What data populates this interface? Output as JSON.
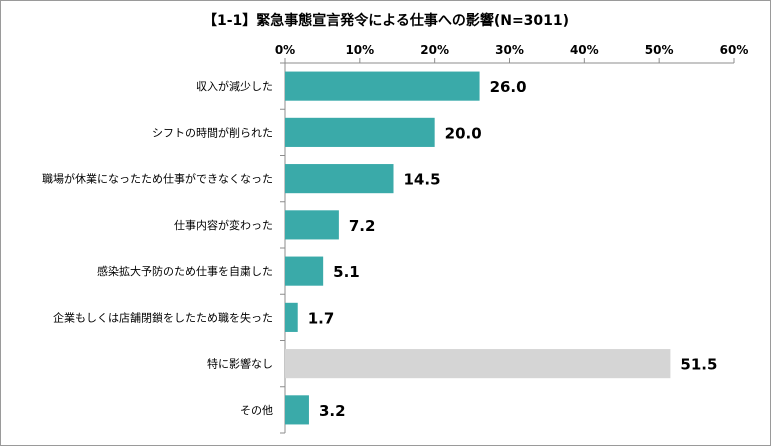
{
  "chart_data": {
    "type": "bar",
    "orientation": "horizontal",
    "title": "【1-1】緊急事態宣言発令による仕事への影響(N=3011)",
    "xlabel": "",
    "ylabel": "",
    "xlim": [
      0,
      60
    ],
    "x_ticks": [
      0,
      10,
      20,
      30,
      40,
      50,
      60
    ],
    "x_tick_labels": [
      "0%",
      "10%",
      "20%",
      "30%",
      "40%",
      "50%",
      "60%"
    ],
    "x_axis_position": "top",
    "categories": [
      "収入が減少した",
      "シフトの時間が削られた",
      "職場が休業になったため仕事ができなくなった",
      "仕事内容が変わった",
      "感染拡大予防のため仕事を自粛した",
      "企業もしくは店舗閉鎖をしたため職を失った",
      "特に影響なし",
      "その他"
    ],
    "values": [
      26.0,
      20.0,
      14.5,
      7.2,
      5.1,
      1.7,
      51.5,
      3.2
    ],
    "value_labels": [
      "26.0",
      "20.0",
      "14.5",
      "7.2",
      "5.1",
      "1.7",
      "51.5",
      "3.2"
    ],
    "bar_colors": [
      "#3aaaa9",
      "#3aaaa9",
      "#3aaaa9",
      "#3aaaa9",
      "#3aaaa9",
      "#3aaaa9",
      "#d5d5d5",
      "#3aaaa9"
    ],
    "grid": false,
    "legend": "none"
  }
}
